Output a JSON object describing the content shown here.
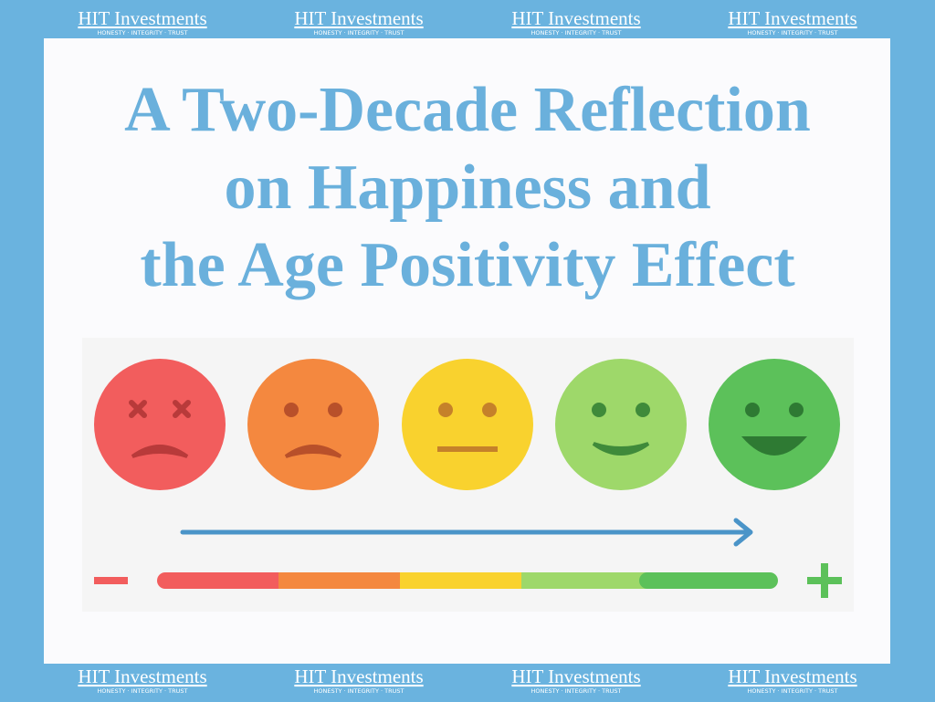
{
  "header": {
    "logos": [
      {
        "name": "HIT Investments",
        "tagline": "HONESTY · INTEGRITY · TRUST"
      },
      {
        "name": "HIT Investments",
        "tagline": "HONESTY · INTEGRITY · TRUST"
      },
      {
        "name": "HIT Investments",
        "tagline": "HONESTY · INTEGRITY · TRUST"
      },
      {
        "name": "HIT Investments",
        "tagline": "HONESTY · INTEGRITY · TRUST"
      }
    ]
  },
  "title": {
    "lines": [
      "A Two-Decade Reflection",
      "on Happiness and",
      "the Age Positivity Effect"
    ]
  },
  "footer": {
    "logos": [
      {
        "name": "HIT Investments",
        "tagline": "HONESTY · INTEGRITY · TRUST"
      },
      {
        "name": "HIT Investments",
        "tagline": "HONESTY · INTEGRITY · TRUST"
      },
      {
        "name": "HIT Investments",
        "tagline": "HONESTY · INTEGRITY · TRUST"
      },
      {
        "name": "HIT Investments",
        "tagline": "HONESTY · INTEGRITY · TRUST"
      }
    ]
  }
}
